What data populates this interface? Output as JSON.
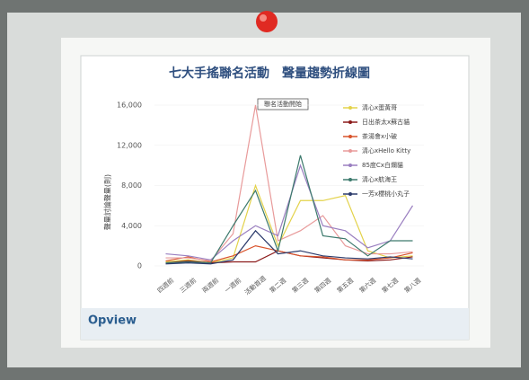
{
  "chart_data": {
    "type": "line",
    "title": "七大手搖聯名活動　聲量趨勢折線圖",
    "annotation": "聯名活動開始",
    "y_label": "聲量討論聲量(則)",
    "logo": "Opview",
    "categories": [
      "四週前",
      "三週前",
      "兩週前",
      "一週前",
      "活動首週",
      "第二週",
      "第三週",
      "第四週",
      "第五週",
      "第六週",
      "第七週",
      "第八週"
    ],
    "ylim": [
      0,
      16500
    ],
    "yticks": [
      0,
      {
        "value": 4000,
        "label": "4,000"
      },
      {
        "value": 8000,
        "label": "8,000"
      },
      {
        "value": 12000,
        "label": "12,000"
      },
      {
        "value": 16000,
        "label": "16,000"
      }
    ],
    "series": [
      {
        "name": "清心x蛋黃哥",
        "color": "#e3d24a",
        "values": [
          400,
          600,
          300,
          800,
          8000,
          2000,
          6500,
          6500,
          7000,
          1500,
          800,
          1000
        ]
      },
      {
        "name": "日出茶太x蘇古貓",
        "color": "#8b1a1a",
        "values": [
          300,
          500,
          300,
          400,
          400,
          1500,
          1000,
          800,
          600,
          500,
          600,
          900
        ]
      },
      {
        "name": "茶湯會x小破",
        "color": "#d9532b",
        "values": [
          500,
          900,
          400,
          1000,
          2000,
          1500,
          1000,
          900,
          600,
          600,
          800,
          1300
        ]
      },
      {
        "name": "清心xHello Kitty",
        "color": "#e89a9a",
        "values": [
          800,
          800,
          500,
          3200,
          16000,
          2500,
          3500,
          5000,
          2000,
          1200,
          1200,
          1400
        ]
      },
      {
        "name": "85度Cx白爛貓",
        "color": "#9a7fc0",
        "values": [
          1200,
          1000,
          600,
          2500,
          4000,
          3000,
          10000,
          4000,
          3500,
          1800,
          2500,
          6000
        ]
      },
      {
        "name": "清心x航海王",
        "color": "#3d7a6d",
        "values": [
          300,
          400,
          300,
          4000,
          7500,
          1500,
          11000,
          3000,
          2700,
          1000,
          2500,
          2500
        ]
      },
      {
        "name": "一芳x櫻桃小丸子",
        "color": "#2b3a6b",
        "values": [
          200,
          300,
          200,
          600,
          3500,
          1200,
          1500,
          1000,
          800,
          700,
          900,
          700
        ]
      }
    ]
  }
}
